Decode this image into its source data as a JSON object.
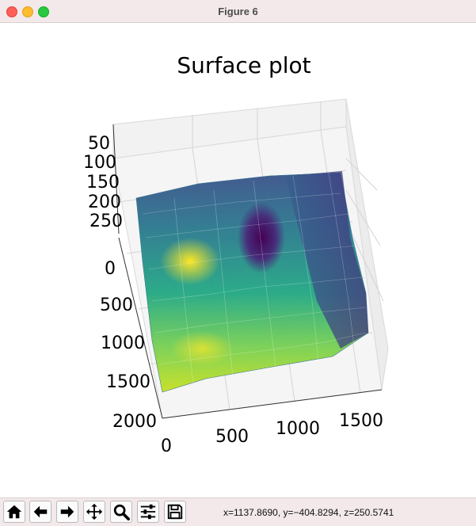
{
  "window": {
    "title": "Figure 6"
  },
  "chart_data": {
    "type": "surface",
    "title": "Surface plot",
    "colormap": "viridis",
    "x_ticks": [
      "0",
      "500",
      "1000",
      "1500"
    ],
    "y_ticks": [
      "0",
      "500",
      "1000",
      "1500",
      "2000"
    ],
    "z_ticks": [
      "50",
      "100",
      "150",
      "200",
      "250"
    ],
    "xlim": [
      0,
      1600
    ],
    "ylim": [
      0,
      2000
    ],
    "zlim": [
      40,
      260
    ],
    "grid": true
  },
  "toolbar": {
    "buttons": [
      {
        "name": "home-button",
        "icon": "home-icon"
      },
      {
        "name": "back-button",
        "icon": "arrow-left-icon"
      },
      {
        "name": "forward-button",
        "icon": "arrow-right-icon"
      },
      {
        "name": "pan-button",
        "icon": "move-icon"
      },
      {
        "name": "zoom-button",
        "icon": "magnifier-icon"
      },
      {
        "name": "configure-subplots-button",
        "icon": "sliders-icon"
      },
      {
        "name": "save-button",
        "icon": "floppy-disk-icon"
      }
    ],
    "coords": "x=1137.8690, y=−404.8294, z=250.5741"
  }
}
